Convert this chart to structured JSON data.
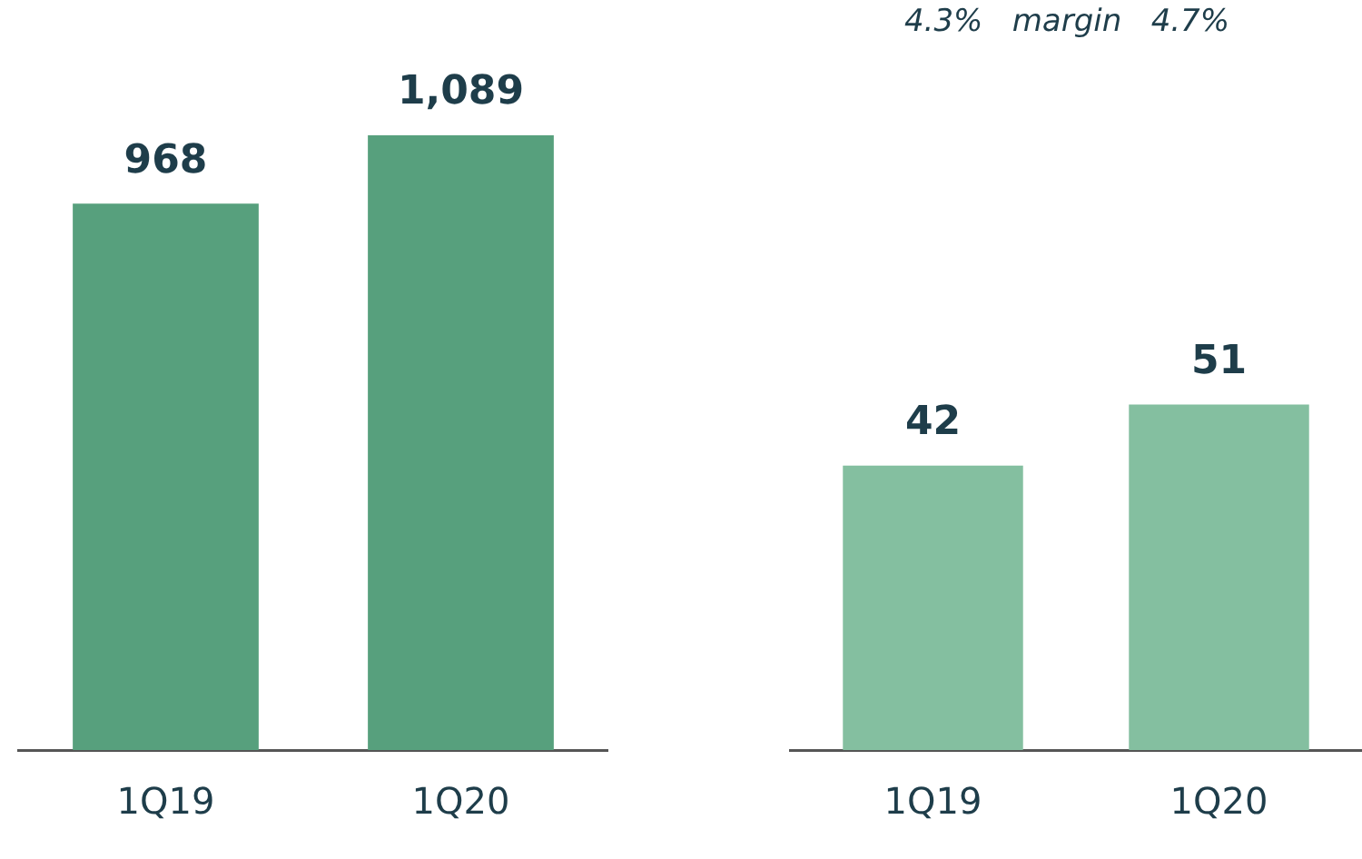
{
  "chart_data": [
    {
      "type": "bar",
      "categories": [
        "1Q19",
        "1Q20"
      ],
      "values": [
        968,
        1089
      ],
      "color": "#57a07d",
      "value_labels": [
        "968",
        "1,089"
      ]
    },
    {
      "type": "bar",
      "categories": [
        "1Q19",
        "1Q20"
      ],
      "values": [
        42,
        51
      ],
      "color": "#84bfa0",
      "data_labels": true,
      "annotations": [
        "4.3%   margin   4.7%"
      ]
    }
  ]
}
